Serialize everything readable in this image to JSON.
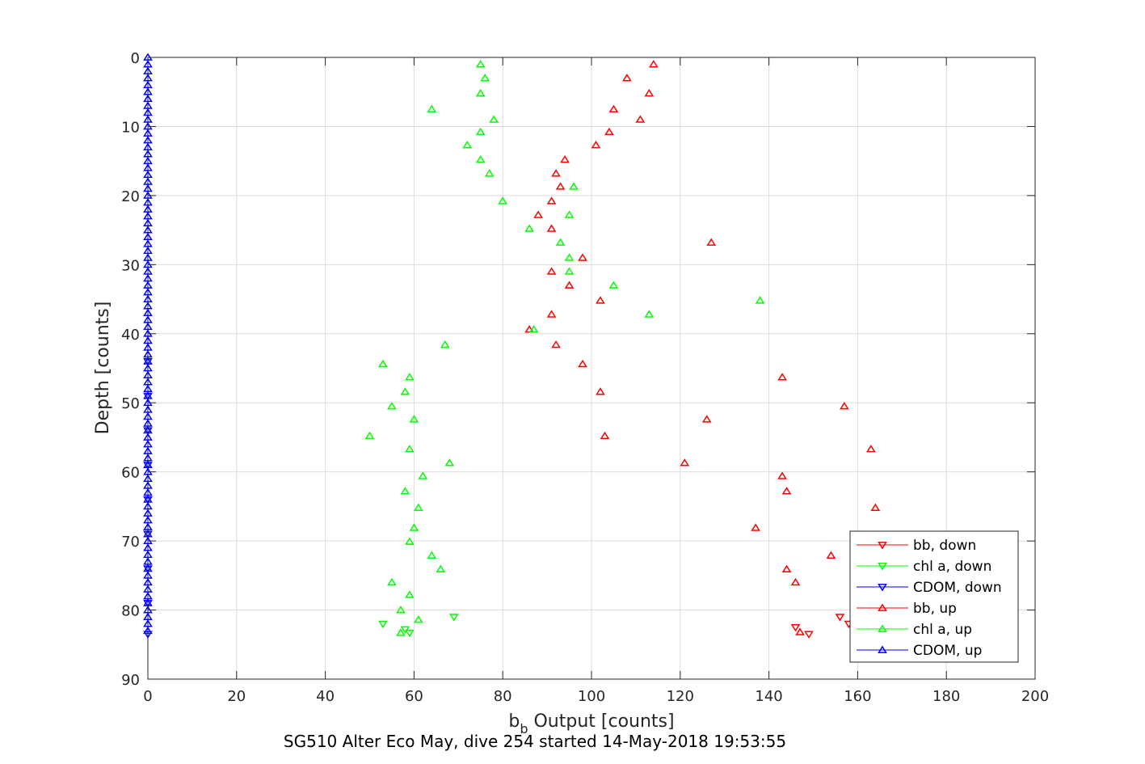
{
  "chart_data": {
    "type": "scatter",
    "title": "",
    "caption": "SG510 Alter Eco May, dive 254 started 14-May-2018 19:53:55",
    "xlabel": {
      "main": "b",
      "sub": "b",
      "rest": " Output [counts]"
    },
    "ylabel": "Depth [counts]",
    "xlim": [
      0,
      200
    ],
    "ylim": [
      0,
      90
    ],
    "y_reversed": true,
    "grid": true,
    "legend_position": "bottom-right",
    "x_ticks": [
      0,
      20,
      40,
      60,
      80,
      100,
      120,
      140,
      160,
      180,
      200
    ],
    "y_ticks": [
      0,
      10,
      20,
      30,
      40,
      50,
      60,
      70,
      80,
      90
    ],
    "x_tick_labels": [
      "0",
      "20",
      "40",
      "60",
      "80",
      "100",
      "120",
      "140",
      "160",
      "180",
      "200"
    ],
    "y_tick_labels": [
      "0",
      "10",
      "20",
      "30",
      "40",
      "50",
      "60",
      "70",
      "80",
      "90"
    ],
    "series": [
      {
        "name": "bb, down",
        "color": "#ff0000",
        "marker": "triangle-down",
        "points": [
          [
            146,
            82.5
          ],
          [
            149,
            83.5
          ],
          [
            156,
            81
          ],
          [
            158,
            82
          ]
        ]
      },
      {
        "name": "chl a, down",
        "color": "#00ff00",
        "marker": "triangle-down",
        "points": [
          [
            53,
            82
          ],
          [
            58,
            82.8
          ],
          [
            59,
            83.3
          ],
          [
            69,
            81
          ]
        ]
      },
      {
        "name": "CDOM, down",
        "color": "#0000ff",
        "marker": "triangle-down",
        "points": [
          [
            0,
            44
          ],
          [
            0,
            49
          ],
          [
            0,
            54
          ],
          [
            0,
            59
          ],
          [
            0,
            64
          ],
          [
            0,
            69
          ],
          [
            0,
            74
          ],
          [
            0,
            79
          ],
          [
            0,
            83.5
          ]
        ]
      },
      {
        "name": "bb, up",
        "color": "#ff0000",
        "marker": "triangle-up",
        "points": [
          [
            114,
            1
          ],
          [
            108,
            3
          ],
          [
            113,
            5.2
          ],
          [
            105,
            7.5
          ],
          [
            111,
            9
          ],
          [
            104,
            10.8
          ],
          [
            101,
            12.7
          ],
          [
            94,
            14.8
          ],
          [
            92,
            16.8
          ],
          [
            93,
            18.7
          ],
          [
            91,
            20.8
          ],
          [
            88,
            22.8
          ],
          [
            91,
            24.8
          ],
          [
            127,
            26.8
          ],
          [
            98,
            29
          ],
          [
            91,
            31
          ],
          [
            95,
            33
          ],
          [
            102,
            35.2
          ],
          [
            91,
            37.2
          ],
          [
            86,
            39.4
          ],
          [
            92,
            41.6
          ],
          [
            98,
            44.4
          ],
          [
            143,
            46.3
          ],
          [
            102,
            48.4
          ],
          [
            157,
            50.5
          ],
          [
            126,
            52.4
          ],
          [
            103,
            54.8
          ],
          [
            163,
            56.7
          ],
          [
            121,
            58.7
          ],
          [
            143,
            60.6
          ],
          [
            144,
            62.8
          ],
          [
            164,
            65.2
          ],
          [
            137,
            68.1
          ],
          [
            154,
            72.1
          ],
          [
            144,
            74.1
          ],
          [
            146,
            76
          ],
          [
            147,
            83.2
          ]
        ]
      },
      {
        "name": "chl a, up",
        "color": "#00ff00",
        "marker": "triangle-up",
        "points": [
          [
            75,
            1
          ],
          [
            76,
            3
          ],
          [
            75,
            5.2
          ],
          [
            64,
            7.5
          ],
          [
            78,
            9
          ],
          [
            75,
            10.8
          ],
          [
            72,
            12.7
          ],
          [
            75,
            14.8
          ],
          [
            77,
            16.8
          ],
          [
            96,
            18.7
          ],
          [
            80,
            20.8
          ],
          [
            95,
            22.8
          ],
          [
            86,
            24.8
          ],
          [
            93,
            26.8
          ],
          [
            95,
            29
          ],
          [
            95,
            31
          ],
          [
            105,
            33
          ],
          [
            138,
            35.2
          ],
          [
            113,
            37.2
          ],
          [
            87,
            39.4
          ],
          [
            67,
            41.6
          ],
          [
            53,
            44.4
          ],
          [
            59,
            46.3
          ],
          [
            58,
            48.4
          ],
          [
            55,
            50.5
          ],
          [
            60,
            52.4
          ],
          [
            50,
            54.8
          ],
          [
            59,
            56.7
          ],
          [
            68,
            58.7
          ],
          [
            62,
            60.6
          ],
          [
            58,
            62.8
          ],
          [
            61,
            65.2
          ],
          [
            60,
            68.1
          ],
          [
            59,
            70.1
          ],
          [
            64,
            72.1
          ],
          [
            66,
            74.1
          ],
          [
            55,
            76
          ],
          [
            59,
            77.8
          ],
          [
            57,
            80
          ],
          [
            61,
            81.4
          ],
          [
            57,
            83.3
          ]
        ]
      },
      {
        "name": "CDOM, up",
        "color": "#0000ff",
        "marker": "triangle-up",
        "points": [
          [
            0,
            0
          ],
          [
            0,
            1
          ],
          [
            0,
            2
          ],
          [
            0,
            3
          ],
          [
            0,
            4
          ],
          [
            0,
            5
          ],
          [
            0,
            6
          ],
          [
            0,
            7
          ],
          [
            0,
            8
          ],
          [
            0,
            9
          ],
          [
            0,
            10
          ],
          [
            0,
            11
          ],
          [
            0,
            12
          ],
          [
            0,
            13
          ],
          [
            0,
            14
          ],
          [
            0,
            15
          ],
          [
            0,
            16
          ],
          [
            0,
            17
          ],
          [
            0,
            18
          ],
          [
            0,
            19
          ],
          [
            0,
            20
          ],
          [
            0,
            21
          ],
          [
            0,
            22
          ],
          [
            0,
            23
          ],
          [
            0,
            24
          ],
          [
            0,
            25
          ],
          [
            0,
            26
          ],
          [
            0,
            27
          ],
          [
            0,
            28
          ],
          [
            0,
            29
          ],
          [
            0,
            30
          ],
          [
            0,
            31
          ],
          [
            0,
            32
          ],
          [
            0,
            33
          ],
          [
            0,
            34
          ],
          [
            0,
            35
          ],
          [
            0,
            36
          ],
          [
            0,
            37
          ],
          [
            0,
            38
          ],
          [
            0,
            39
          ],
          [
            0,
            40
          ],
          [
            0,
            41
          ],
          [
            0,
            42
          ],
          [
            0,
            43
          ],
          [
            0,
            44
          ],
          [
            0,
            45
          ],
          [
            0,
            46
          ],
          [
            0,
            47
          ],
          [
            0,
            48
          ],
          [
            0,
            49
          ],
          [
            0,
            50
          ],
          [
            0,
            51
          ],
          [
            0,
            52
          ],
          [
            0,
            53
          ],
          [
            0,
            54
          ],
          [
            0,
            55
          ],
          [
            0,
            56
          ],
          [
            0,
            57
          ],
          [
            0,
            58
          ],
          [
            0,
            59
          ],
          [
            0,
            60
          ],
          [
            0,
            61
          ],
          [
            0,
            62
          ],
          [
            0,
            63
          ],
          [
            0,
            64
          ],
          [
            0,
            65
          ],
          [
            0,
            66
          ],
          [
            0,
            67
          ],
          [
            0,
            68
          ],
          [
            0,
            69
          ],
          [
            0,
            70
          ],
          [
            0,
            71
          ],
          [
            0,
            72
          ],
          [
            0,
            73
          ],
          [
            0,
            74
          ],
          [
            0,
            75
          ],
          [
            0,
            76
          ],
          [
            0,
            77
          ],
          [
            0,
            78
          ],
          [
            0,
            79
          ],
          [
            0,
            80
          ],
          [
            0,
            81
          ],
          [
            0,
            82
          ],
          [
            0,
            83
          ]
        ]
      }
    ]
  }
}
